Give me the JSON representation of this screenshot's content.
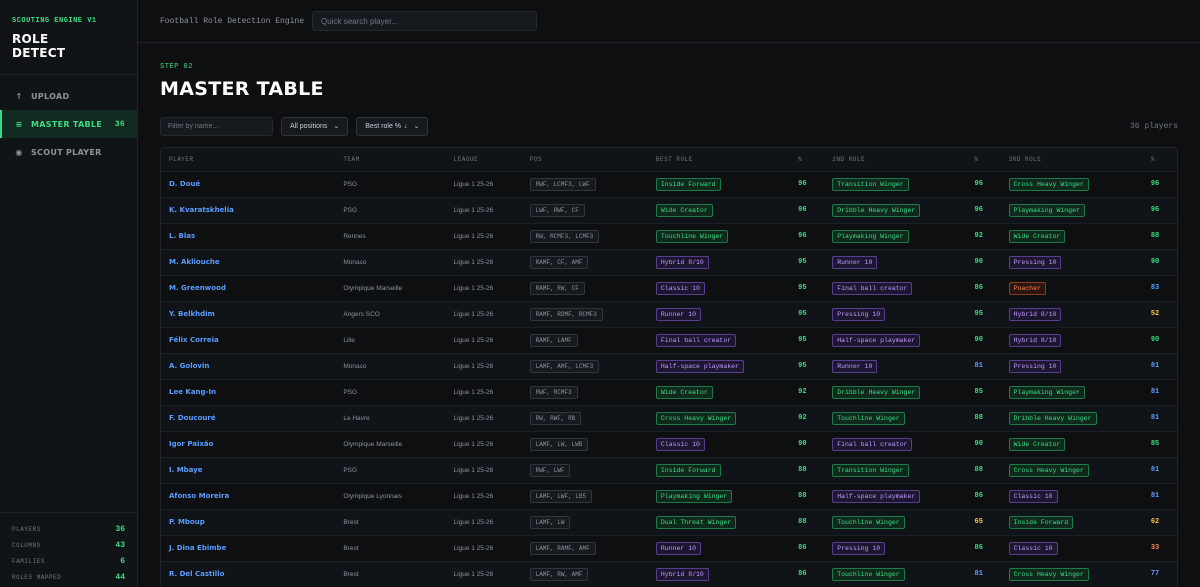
{
  "sidebar": {
    "brand_sub": "SCOUTING ENGINE V1",
    "brand_line1": "ROLE",
    "brand_line2": "DETECT",
    "nav": [
      {
        "icon": "↑",
        "label": "UPLOAD",
        "count": ""
      },
      {
        "icon": "≡",
        "label": "MASTER TABLE",
        "count": "36"
      },
      {
        "icon": "◉",
        "label": "SCOUT PLAYER",
        "count": ""
      }
    ],
    "stats": [
      {
        "label": "PLAYERS",
        "value": "36"
      },
      {
        "label": "COLUMNS",
        "value": "43"
      },
      {
        "label": "FAMILIES",
        "value": "6"
      },
      {
        "label": "ROLES MAPPED",
        "value": "44"
      }
    ]
  },
  "topbar": {
    "title": "Football Role Detection Engine",
    "search_placeholder": "Quick search player..."
  },
  "main": {
    "step": "STEP 02",
    "title": "MASTER TABLE",
    "filter_placeholder": "Filter by name...",
    "position_select": "All positions",
    "sort_select": "Best role %",
    "sort_arrow": "↓",
    "count_text": "36 players"
  },
  "table": {
    "headers": [
      "PLAYER",
      "TEAM",
      "LEAGUE",
      "POS",
      "BEST ROLE",
      "%",
      "2ND ROLE",
      "%",
      "3RD ROLE",
      "%"
    ],
    "rows": [
      {
        "player": "D. Doué",
        "team": "PSG",
        "league": "Ligue 1 25-26",
        "pos": "RWF, LCMF3, LWF",
        "r1": "Inside Forward",
        "r1c": "green",
        "p1": "96",
        "p1c": "green",
        "r2": "Transition Winger",
        "r2c": "green",
        "p2": "96",
        "p2c": "green",
        "r3": "Cross Heavy Winger",
        "r3c": "green",
        "p3": "96",
        "p3c": "green"
      },
      {
        "player": "K. Kvaratskhelia",
        "team": "PSG",
        "league": "Ligue 1 25-26",
        "pos": "LWF, RWF, CF",
        "r1": "Wide Creator",
        "r1c": "green",
        "p1": "96",
        "p1c": "green",
        "r2": "Dribble Heavy Winger",
        "r2c": "green",
        "p2": "96",
        "p2c": "green",
        "r3": "Playmaking Winger",
        "r3c": "green",
        "p3": "96",
        "p3c": "green"
      },
      {
        "player": "L. Blas",
        "team": "Rennes",
        "league": "Ligue 1 25-26",
        "pos": "RW, RCMF3, LCMF3",
        "r1": "Touchline Winger",
        "r1c": "green",
        "p1": "96",
        "p1c": "green",
        "r2": "Playmaking Winger",
        "r2c": "green",
        "p2": "92",
        "p2c": "green",
        "r3": "Wide Creator",
        "r3c": "green",
        "p3": "88",
        "p3c": "green"
      },
      {
        "player": "M. Akliouche",
        "team": "Monaco",
        "league": "Ligue 1 25-26",
        "pos": "RAMF, CF, AMF",
        "r1": "Hybrid 8/10",
        "r1c": "purple",
        "p1": "95",
        "p1c": "green",
        "r2": "Runner 10",
        "r2c": "purple",
        "p2": "90",
        "p2c": "green",
        "r3": "Pressing 10",
        "r3c": "purple",
        "p3": "90",
        "p3c": "green"
      },
      {
        "player": "M. Greenwood",
        "team": "Olympique Marseille",
        "league": "Ligue 1 25-26",
        "pos": "RAMF, RW, CF",
        "r1": "Classic 10",
        "r1c": "purple",
        "p1": "95",
        "p1c": "green",
        "r2": "Final ball creator",
        "r2c": "purple",
        "p2": "86",
        "p2c": "green",
        "r3": "Poacher",
        "r3c": "orange",
        "p3": "83",
        "p3c": "blue"
      },
      {
        "player": "Y. Belkhdim",
        "team": "Angers SCO",
        "league": "Ligue 1 25-26",
        "pos": "RAMF, RDMF, RCMF3",
        "r1": "Runner 10",
        "r1c": "purple",
        "p1": "95",
        "p1c": "green",
        "r2": "Pressing 10",
        "r2c": "purple",
        "p2": "95",
        "p2c": "green",
        "r3": "Hybrid 8/10",
        "r3c": "purple",
        "p3": "52",
        "p3c": "yellow"
      },
      {
        "player": "Félix Correia",
        "team": "Lille",
        "league": "Ligue 1 25-26",
        "pos": "RAMF, LAMF",
        "r1": "Final ball creator",
        "r1c": "purple",
        "p1": "95",
        "p1c": "green",
        "r2": "Half-space playmaker",
        "r2c": "purple",
        "p2": "90",
        "p2c": "green",
        "r3": "Hybrid 8/10",
        "r3c": "purple",
        "p3": "90",
        "p3c": "green"
      },
      {
        "player": "A. Golovin",
        "team": "Monaco",
        "league": "Ligue 1 25-26",
        "pos": "LAMF, AMF, LCMF3",
        "r1": "Half-space playmaker",
        "r1c": "purple",
        "p1": "95",
        "p1c": "green",
        "r2": "Runner 10",
        "r2c": "purple",
        "p2": "81",
        "p2c": "blue",
        "r3": "Pressing 10",
        "r3c": "purple",
        "p3": "81",
        "p3c": "blue"
      },
      {
        "player": "Lee Kang-In",
        "team": "PSG",
        "league": "Ligue 1 25-26",
        "pos": "RWF, RCMF3",
        "r1": "Wide Creator",
        "r1c": "green",
        "p1": "92",
        "p1c": "green",
        "r2": "Dribble Heavy Winger",
        "r2c": "green",
        "p2": "85",
        "p2c": "green",
        "r3": "Playmaking Winger",
        "r3c": "green",
        "p3": "81",
        "p3c": "blue"
      },
      {
        "player": "F. Doucouré",
        "team": "Le Havre",
        "league": "Ligue 1 25-26",
        "pos": "RW, RWF, RB",
        "r1": "Cross Heavy Winger",
        "r1c": "green",
        "p1": "92",
        "p1c": "green",
        "r2": "Touchline Winger",
        "r2c": "green",
        "p2": "88",
        "p2c": "green",
        "r3": "Dribble Heavy Winger",
        "r3c": "green",
        "p3": "81",
        "p3c": "blue"
      },
      {
        "player": "Igor Paixão",
        "team": "Olympique Marseille",
        "league": "Ligue 1 25-26",
        "pos": "LAMF, LW, LWB",
        "r1": "Classic 10",
        "r1c": "purple",
        "p1": "90",
        "p1c": "green",
        "r2": "Final ball creator",
        "r2c": "purple",
        "p2": "90",
        "p2c": "green",
        "r3": "Wide Creator",
        "r3c": "green",
        "p3": "85",
        "p3c": "green"
      },
      {
        "player": "I. Mbaye",
        "team": "PSG",
        "league": "Ligue 1 25-26",
        "pos": "RWF, LWF",
        "r1": "Inside Forward",
        "r1c": "green",
        "p1": "88",
        "p1c": "green",
        "r2": "Transition Winger",
        "r2c": "green",
        "p2": "88",
        "p2c": "green",
        "r3": "Cross Heavy Winger",
        "r3c": "green",
        "p3": "81",
        "p3c": "blue"
      },
      {
        "player": "Afonso Moreira",
        "team": "Olympique Lyonnais",
        "league": "Ligue 1 25-26",
        "pos": "LAMF, LWF, LB5",
        "r1": "Playmaking Winger",
        "r1c": "green",
        "p1": "88",
        "p1c": "green",
        "r2": "Half-space playmaker",
        "r2c": "purple",
        "p2": "86",
        "p2c": "green",
        "r3": "Classic 10",
        "r3c": "purple",
        "p3": "81",
        "p3c": "blue"
      },
      {
        "player": "P. Mboup",
        "team": "Brest",
        "league": "Ligue 1 25-26",
        "pos": "LAMF, LW",
        "r1": "Dual Threat Winger",
        "r1c": "green",
        "p1": "88",
        "p1c": "green",
        "r2": "Touchline Winger",
        "r2c": "green",
        "p2": "65",
        "p2c": "yellow",
        "r3": "Inside Forward",
        "r3c": "green",
        "p3": "62",
        "p3c": "yellow"
      },
      {
        "player": "J. Dina Ebimbe",
        "team": "Brest",
        "league": "Ligue 1 25-26",
        "pos": "LAMF, RAMF, AMF",
        "r1": "Runner 10",
        "r1c": "purple",
        "p1": "86",
        "p1c": "green",
        "r2": "Pressing 10",
        "r2c": "purple",
        "p2": "86",
        "p2c": "green",
        "r3": "Classic 10",
        "r3c": "purple",
        "p3": "33",
        "p3c": "orange"
      },
      {
        "player": "R. Del Castillo",
        "team": "Brest",
        "league": "Ligue 1 25-26",
        "pos": "LAMF, RW, AMF",
        "r1": "Hybrid 8/10",
        "r1c": "purple",
        "p1": "86",
        "p1c": "green",
        "r2": "Touchline Winger",
        "r2c": "green",
        "p2": "81",
        "p2c": "blue",
        "r3": "Cross Heavy Winger",
        "r3c": "green",
        "p3": "77",
        "p3c": "blue"
      }
    ]
  }
}
